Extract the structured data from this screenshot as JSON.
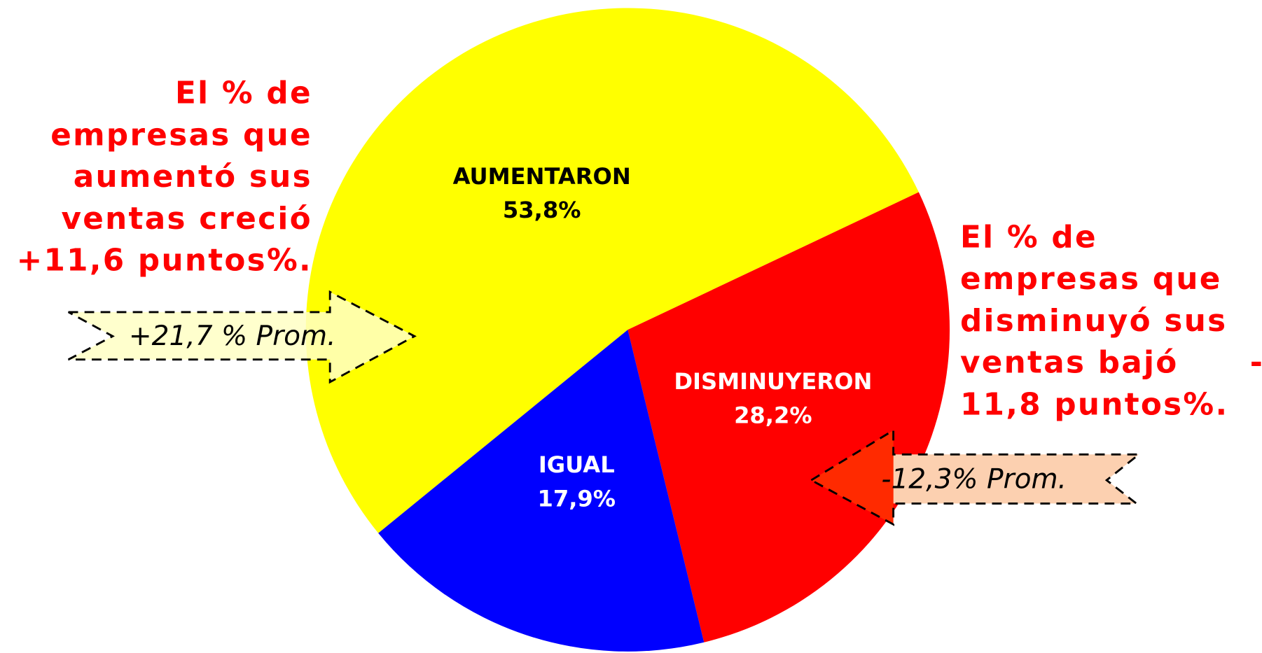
{
  "chart_data": {
    "type": "pie",
    "categories": [
      "AUMENTARON",
      "DISMINUYERON",
      "IGUAL"
    ],
    "values": [
      53.8,
      28.2,
      17.9
    ],
    "value_labels": [
      "53,8%",
      "28,2%",
      "17,9%"
    ],
    "colors": [
      "#ffff00",
      "#ff0000",
      "#0000ff"
    ],
    "label_colors": [
      "#000000",
      "#ffffff",
      "#ffffff"
    ],
    "annotations": {
      "left_note": [
        "El % de",
        "empresas que",
        "aumentó sus",
        "ventas creció",
        "+11,6 puntos%."
      ],
      "right_note": [
        "El % de",
        "empresas que",
        "disminuyó sus",
        "ventas bajó",
        "11,8 puntos%."
      ],
      "right_note_dash": "-",
      "left_arrow": "+21,7 % Prom.",
      "right_arrow": "-12,3% Prom."
    }
  }
}
